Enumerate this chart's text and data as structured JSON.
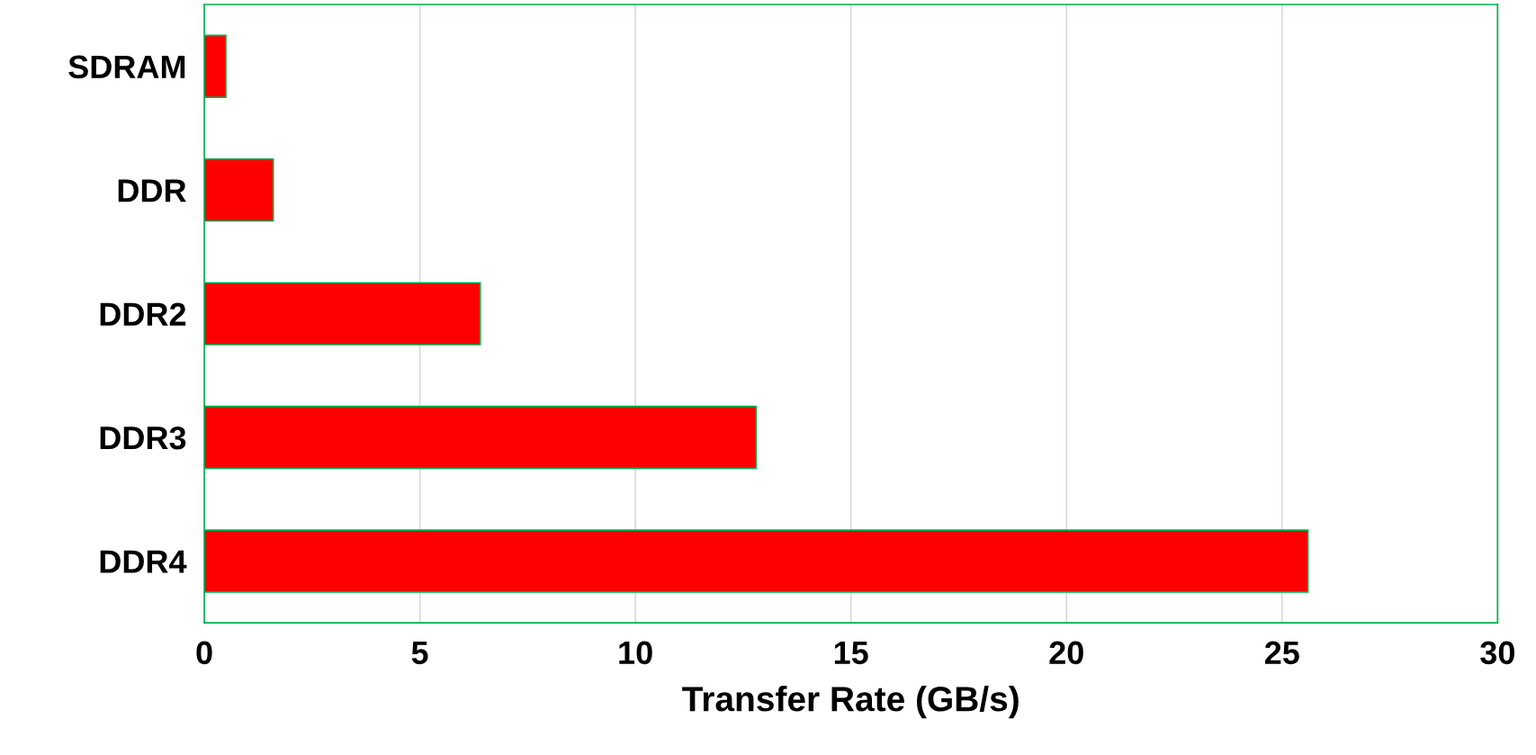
{
  "chart_data": {
    "type": "bar",
    "orientation": "horizontal",
    "xlabel": "Transfer Rate (GB/s)",
    "categories": [
      "SDRAM",
      "DDR",
      "DDR2",
      "DDR3",
      "DDR4"
    ],
    "values": [
      0.5,
      1.6,
      6.4,
      12.8,
      25.6
    ],
    "color": "#ff0000",
    "xlim": [
      0,
      30
    ],
    "xticks": [
      0,
      5,
      10,
      15,
      20,
      25,
      30
    ],
    "grid": "x",
    "legend": false
  }
}
